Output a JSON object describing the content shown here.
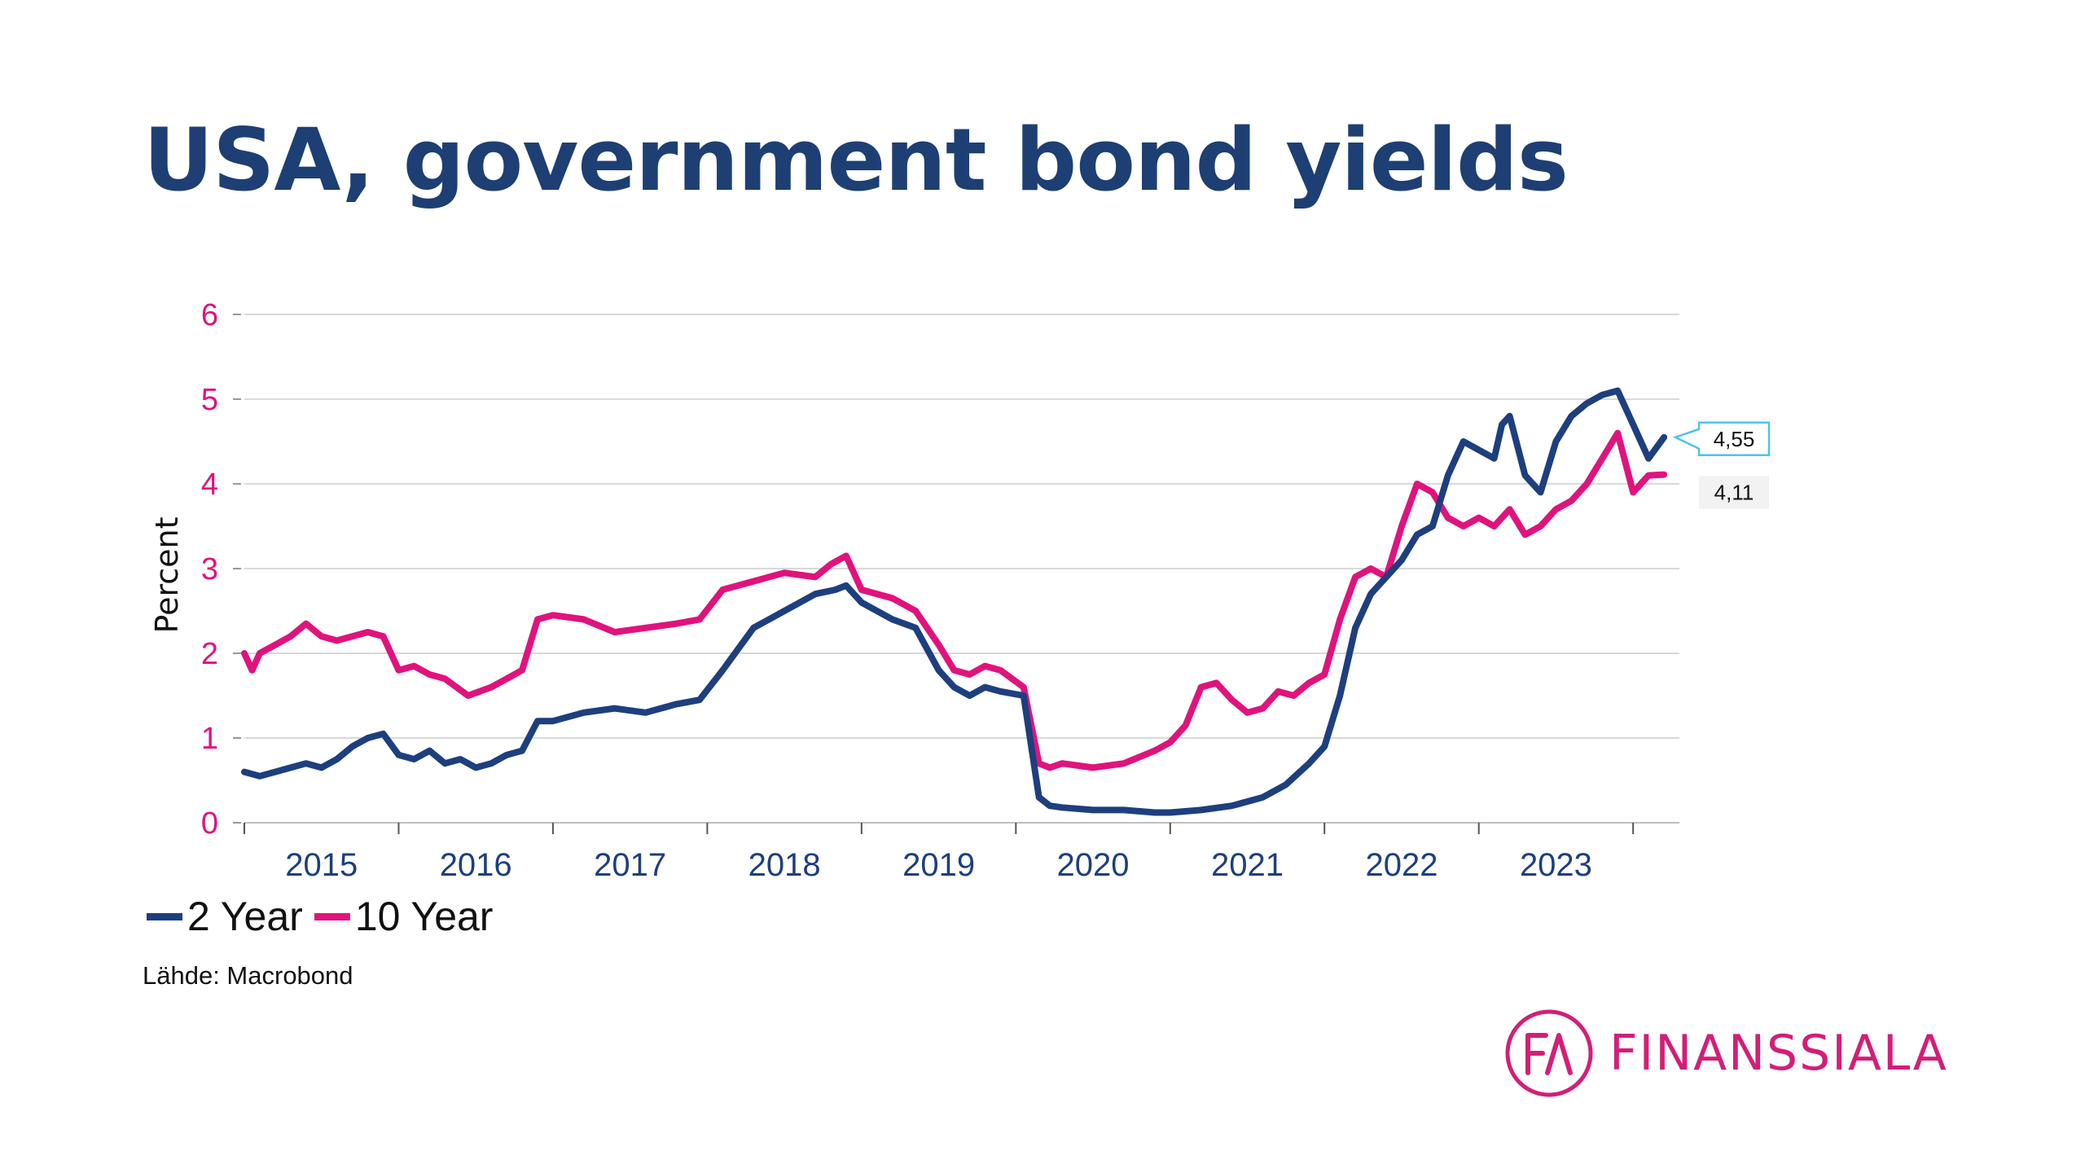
{
  "slide": {
    "title": "USA, government bond yields",
    "source": "Lähde: Macrobond",
    "logo_text": "FINANSSIALA",
    "logo_mark": "FA"
  },
  "colors": {
    "title": "#1d3f73",
    "two_year": "#1d3f7f",
    "ten_year": "#e0137d",
    "y_tick_labels": "#e0137d",
    "x_tick_labels": "#1d3f7f",
    "gridline": "#d9d9d9",
    "logo": "#d21f77",
    "callout_border": "#4fc3e8"
  },
  "chart_data": {
    "type": "line",
    "title": "",
    "xlabel": "",
    "ylabel": "Percent",
    "ylim": [
      0,
      6
    ],
    "y_ticks": [
      "0",
      "1",
      "2",
      "3",
      "4",
      "5",
      "6"
    ],
    "x_tick_labels": [
      "2015",
      "2016",
      "2017",
      "2018",
      "2019",
      "2020",
      "2021",
      "2022",
      "2023"
    ],
    "xlim": [
      2015.0,
      2024.3
    ],
    "grid": "horizontal",
    "legend_position": "bottom-left",
    "series": [
      {
        "name": "2 Year",
        "end_label": "4,55",
        "x": [
          2015.0,
          2015.1,
          2015.2,
          2015.3,
          2015.4,
          2015.5,
          2015.6,
          2015.7,
          2015.8,
          2015.9,
          2016.0,
          2016.1,
          2016.2,
          2016.3,
          2016.4,
          2016.5,
          2016.6,
          2016.7,
          2016.8,
          2016.9,
          2017.0,
          2017.2,
          2017.4,
          2017.6,
          2017.8,
          2017.95,
          2018.1,
          2018.3,
          2018.5,
          2018.7,
          2018.83,
          2018.9,
          2019.0,
          2019.2,
          2019.35,
          2019.5,
          2019.6,
          2019.7,
          2019.8,
          2019.9,
          2020.05,
          2020.15,
          2020.22,
          2020.3,
          2020.5,
          2020.7,
          2020.9,
          2021.0,
          2021.2,
          2021.4,
          2021.6,
          2021.75,
          2021.9,
          2022.0,
          2022.1,
          2022.2,
          2022.3,
          2022.4,
          2022.5,
          2022.6,
          2022.7,
          2022.8,
          2022.9,
          2023.0,
          2023.1,
          2023.15,
          2023.2,
          2023.3,
          2023.4,
          2023.5,
          2023.6,
          2023.7,
          2023.8,
          2023.9,
          2024.0,
          2024.1,
          2024.2
        ],
        "values": [
          0.6,
          0.55,
          0.6,
          0.65,
          0.7,
          0.65,
          0.75,
          0.9,
          1.0,
          1.05,
          0.8,
          0.75,
          0.85,
          0.7,
          0.75,
          0.65,
          0.7,
          0.8,
          0.85,
          1.2,
          1.2,
          1.3,
          1.35,
          1.3,
          1.4,
          1.45,
          1.8,
          2.3,
          2.5,
          2.7,
          2.75,
          2.8,
          2.6,
          2.4,
          2.3,
          1.8,
          1.6,
          1.5,
          1.6,
          1.55,
          1.5,
          0.3,
          0.2,
          0.18,
          0.15,
          0.15,
          0.12,
          0.12,
          0.15,
          0.2,
          0.3,
          0.45,
          0.7,
          0.9,
          1.5,
          2.3,
          2.7,
          2.9,
          3.1,
          3.4,
          3.5,
          4.1,
          4.5,
          4.4,
          4.3,
          4.7,
          4.8,
          4.1,
          3.9,
          4.5,
          4.8,
          4.95,
          5.05,
          5.1,
          4.7,
          4.3,
          4.55
        ]
      },
      {
        "name": "10 Year",
        "end_label": "4,11",
        "x": [
          2015.0,
          2015.05,
          2015.1,
          2015.2,
          2015.3,
          2015.4,
          2015.5,
          2015.6,
          2015.7,
          2015.8,
          2015.9,
          2016.0,
          2016.1,
          2016.2,
          2016.3,
          2016.45,
          2016.6,
          2016.7,
          2016.8,
          2016.85,
          2016.9,
          2017.0,
          2017.2,
          2017.4,
          2017.6,
          2017.8,
          2017.95,
          2018.1,
          2018.3,
          2018.5,
          2018.7,
          2018.8,
          2018.9,
          2019.0,
          2019.2,
          2019.35,
          2019.5,
          2019.6,
          2019.7,
          2019.8,
          2019.9,
          2020.05,
          2020.15,
          2020.22,
          2020.3,
          2020.5,
          2020.7,
          2020.9,
          2021.0,
          2021.1,
          2021.2,
          2021.3,
          2021.4,
          2021.5,
          2021.6,
          2021.7,
          2021.8,
          2021.9,
          2022.0,
          2022.1,
          2022.2,
          2022.3,
          2022.4,
          2022.5,
          2022.6,
          2022.7,
          2022.8,
          2022.9,
          2023.0,
          2023.1,
          2023.2,
          2023.3,
          2023.4,
          2023.5,
          2023.6,
          2023.7,
          2023.8,
          2023.9,
          2024.0,
          2024.1,
          2024.2
        ],
        "values": [
          2.0,
          1.8,
          2.0,
          2.1,
          2.2,
          2.35,
          2.2,
          2.15,
          2.2,
          2.25,
          2.2,
          1.8,
          1.85,
          1.75,
          1.7,
          1.5,
          1.6,
          1.7,
          1.8,
          2.1,
          2.4,
          2.45,
          2.4,
          2.25,
          2.3,
          2.35,
          2.4,
          2.75,
          2.85,
          2.95,
          2.9,
          3.05,
          3.15,
          2.75,
          2.65,
          2.5,
          2.1,
          1.8,
          1.75,
          1.85,
          1.8,
          1.6,
          0.7,
          0.65,
          0.7,
          0.65,
          0.7,
          0.85,
          0.95,
          1.15,
          1.6,
          1.65,
          1.45,
          1.3,
          1.35,
          1.55,
          1.5,
          1.65,
          1.75,
          2.4,
          2.9,
          3.0,
          2.9,
          3.5,
          4.0,
          3.9,
          3.6,
          3.5,
          3.6,
          3.5,
          3.7,
          3.4,
          3.5,
          3.7,
          3.8,
          4.0,
          4.3,
          4.6,
          3.9,
          4.1,
          4.11
        ]
      }
    ]
  }
}
